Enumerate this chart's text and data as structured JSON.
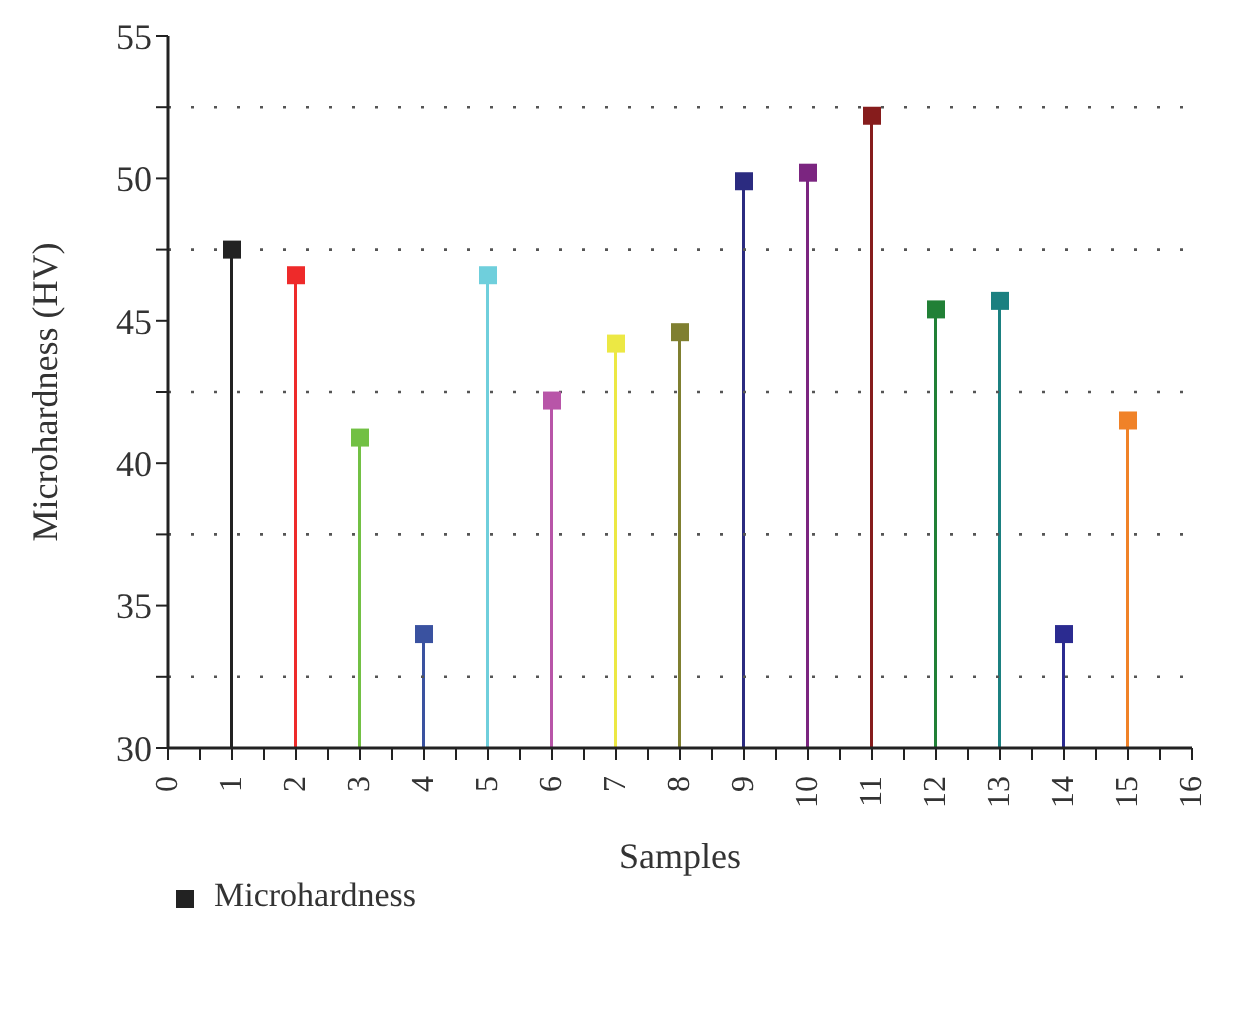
{
  "chart_data": {
    "type": "lollipop",
    "xlabel": "Samples",
    "ylabel": "Microhardness (HV)",
    "x": [
      1,
      2,
      3,
      4,
      5,
      6,
      7,
      8,
      9,
      10,
      11,
      12,
      13,
      14,
      15
    ],
    "series": [
      {
        "name": "Microhardness",
        "color": "#222222",
        "colors": [
          "#222222",
          "#ee2a2a",
          "#72c044",
          "#3a52a0",
          "#6fcfdc",
          "#b855a8",
          "#ece844",
          "#7f7f30",
          "#2b2b80",
          "#7b2580",
          "#861c1c",
          "#218036",
          "#1b8080",
          "#2b2b90",
          "#f08228"
        ],
        "values": [
          47.5,
          46.6,
          40.9,
          34.0,
          46.6,
          42.2,
          44.2,
          44.6,
          49.9,
          50.2,
          52.2,
          45.4,
          45.7,
          34.0,
          41.5
        ]
      }
    ],
    "xlim": [
      0,
      16
    ],
    "xticks": [
      0,
      {
        "value": 0.5,
        "label": null
      },
      1,
      {
        "value": 1.5,
        "label": null
      },
      2,
      {
        "value": 2.5,
        "label": null
      },
      3,
      {
        "value": 3.5,
        "label": null
      },
      4,
      {
        "value": 4.5,
        "label": null
      },
      5,
      {
        "value": 5.5,
        "label": null
      },
      6,
      {
        "value": 6.5,
        "label": null
      },
      7,
      {
        "value": 7.5,
        "label": null
      },
      8,
      {
        "value": 8.5,
        "label": null
      },
      9,
      {
        "value": 9.5,
        "label": null
      },
      10,
      {
        "value": 10.5,
        "label": null
      },
      11,
      {
        "value": 11.5,
        "label": null
      },
      12,
      {
        "value": 12.5,
        "label": null
      },
      13,
      {
        "value": 13.5,
        "label": null
      },
      14,
      {
        "value": 14.5,
        "label": null
      },
      15,
      {
        "value": 15.5,
        "label": null
      },
      16
    ],
    "ylim": [
      30,
      55
    ],
    "yticks": [
      30,
      {
        "value": 32.5,
        "label": null
      },
      35,
      {
        "value": 37.5,
        "label": null
      },
      40,
      {
        "value": 42.5,
        "label": null
      },
      45,
      {
        "value": 47.5,
        "label": null
      },
      50,
      {
        "value": 52.5,
        "label": null
      },
      55
    ],
    "grid": "y",
    "legend": "bottom left",
    "marker": "square"
  }
}
